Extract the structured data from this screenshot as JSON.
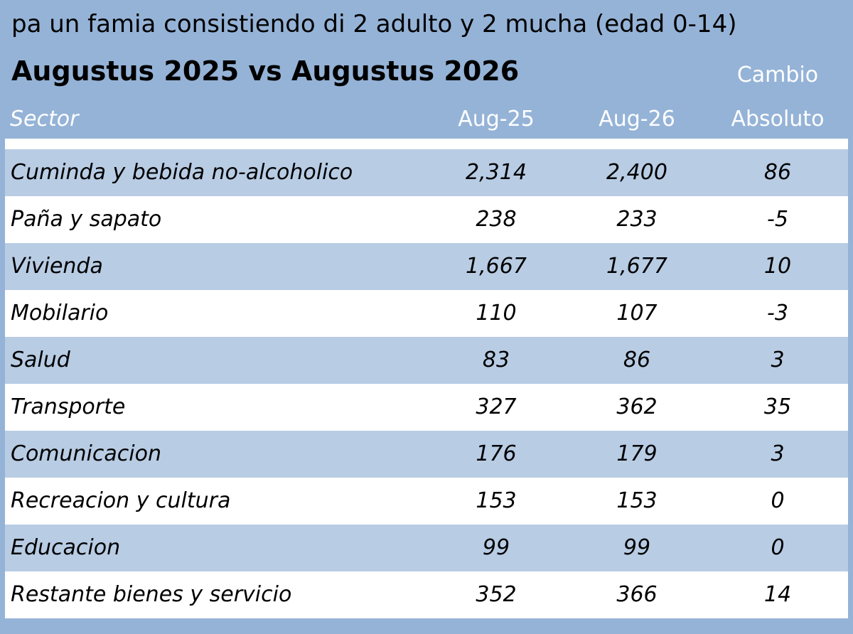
{
  "subtitle": "pa un famia consistiendo di 2 adulto y 2 mucha (edad 0-14)",
  "title": "Augustus 2025 vs Augustus 2026",
  "colors": {
    "background": "#95b3d7",
    "row_shaded": "#b8cce4",
    "row_plain": "#ffffff",
    "header_text": "#ffffff"
  },
  "headers": {
    "sector": "Sector",
    "col1": "Aug-25",
    "col2": "Aug-26",
    "col3_line1": "Cambio",
    "col3_line2": "Absoluto"
  },
  "chart_data": {
    "type": "table",
    "title": "Augustus 2025 vs Augustus 2026",
    "subtitle": "pa un famia consistiendo di 2 adulto y 2 mucha (edad 0-14)",
    "columns": [
      "Sector",
      "Aug-25",
      "Aug-26",
      "Cambio Absoluto"
    ],
    "rows": [
      {
        "sector": "Cuminda y bebida no-alcoholico",
        "aug25": "2,314",
        "aug26": "2,400",
        "cambio": "86"
      },
      {
        "sector": "Paña y sapato",
        "aug25": "238",
        "aug26": "233",
        "cambio": "-5"
      },
      {
        "sector": "Vivienda",
        "aug25": "1,667",
        "aug26": "1,677",
        "cambio": "10"
      },
      {
        "sector": "Mobilario",
        "aug25": "110",
        "aug26": "107",
        "cambio": "-3"
      },
      {
        "sector": "Salud",
        "aug25": "83",
        "aug26": "86",
        "cambio": "3"
      },
      {
        "sector": "Transporte",
        "aug25": "327",
        "aug26": "362",
        "cambio": "35"
      },
      {
        "sector": "Comunicacion",
        "aug25": "176",
        "aug26": "179",
        "cambio": "3"
      },
      {
        "sector": "Recreacion y cultura",
        "aug25": "153",
        "aug26": "153",
        "cambio": "0"
      },
      {
        "sector": "Educacion",
        "aug25": "99",
        "aug26": "99",
        "cambio": "0"
      },
      {
        "sector": "Restante bienes y servicio",
        "aug25": "352",
        "aug26": "366",
        "cambio": "14"
      }
    ]
  }
}
